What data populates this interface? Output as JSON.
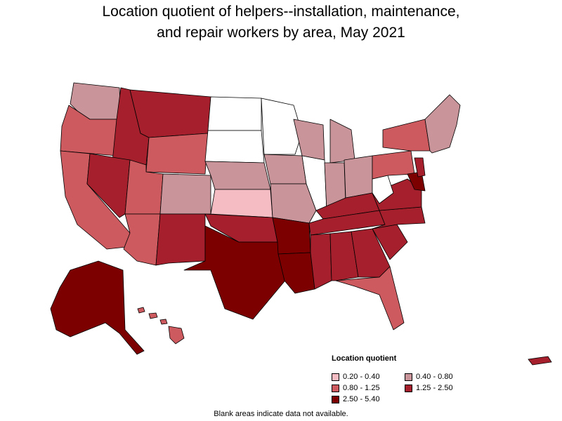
{
  "title": {
    "line1": "Location quotient of helpers--installation, maintenance,",
    "line2": "and repair workers by area, May 2021"
  },
  "legend": {
    "title": "Location quotient",
    "items": [
      {
        "label": "0.20 - 0.40",
        "color": "#f6bcc3"
      },
      {
        "label": "0.40 - 0.80",
        "color": "#c9959b"
      },
      {
        "label": "0.80 - 1.25",
        "color": "#cd5a5f"
      },
      {
        "label": "1.25 - 2.50",
        "color": "#a5202c"
      },
      {
        "label": "2.50 - 5.40",
        "color": "#7d0000"
      }
    ]
  },
  "footnote": "Blank areas indicate data not available.",
  "map_colors": {
    "blank": "#ffffff",
    "border": "#000000"
  }
}
